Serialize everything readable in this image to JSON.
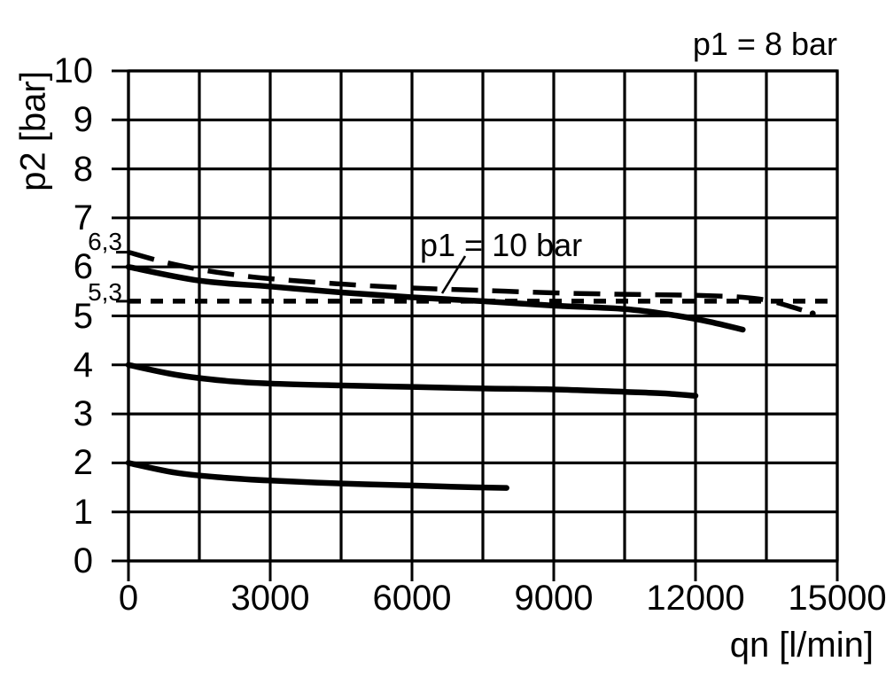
{
  "chart_data": {
    "type": "line",
    "title": "",
    "xlabel": "qn [l/min]",
    "ylabel": "p2 [bar]",
    "xlim": [
      0,
      15000
    ],
    "ylim": [
      0,
      10
    ],
    "x_major_ticks": [
      0,
      3000,
      6000,
      9000,
      12000,
      15000
    ],
    "x_grid_step": 1500,
    "y_ticks": [
      0,
      1,
      2,
      3,
      4,
      5,
      6,
      7,
      8,
      9,
      10
    ],
    "grid": "on",
    "legend": "none",
    "line_color": "#000000",
    "background_color": "#ffffff",
    "annotations": {
      "top_right": "p1 = 8 bar",
      "curve_label": "p1 = 10 bar"
    },
    "special_y_marks": [
      {
        "label": "6,3",
        "value": 6.3
      },
      {
        "label": "5,3",
        "value": 5.3
      }
    ],
    "series": [
      {
        "name": "p1 = 10 bar inlet curve",
        "style": "long-dash",
        "points": [
          [
            0,
            6.3
          ],
          [
            750,
            6.1
          ],
          [
            1500,
            5.95
          ],
          [
            2250,
            5.84
          ],
          [
            3000,
            5.76
          ],
          [
            4500,
            5.65
          ],
          [
            6000,
            5.57
          ],
          [
            7500,
            5.52
          ],
          [
            9000,
            5.47
          ],
          [
            10500,
            5.44
          ],
          [
            12000,
            5.42
          ],
          [
            13000,
            5.38
          ],
          [
            13600,
            5.3
          ],
          [
            14250,
            5.12
          ]
        ],
        "end_dot": [
          14480,
          5.05
        ]
      },
      {
        "name": "5,3 bar reference line",
        "style": "short-dash",
        "points": [
          [
            0,
            5.3
          ],
          [
            14800,
            5.3
          ]
        ]
      },
      {
        "name": "p1 = 8 bar, outlet set 6 bar",
        "style": "solid",
        "points": [
          [
            0,
            6.0
          ],
          [
            1500,
            5.72
          ],
          [
            3000,
            5.6
          ],
          [
            4500,
            5.48
          ],
          [
            6000,
            5.38
          ],
          [
            7500,
            5.3
          ],
          [
            9000,
            5.21
          ],
          [
            10500,
            5.14
          ],
          [
            11500,
            5.02
          ],
          [
            12300,
            4.88
          ],
          [
            13000,
            4.72
          ]
        ]
      },
      {
        "name": "p1 = 8 bar, outlet set 4 bar",
        "style": "solid",
        "points": [
          [
            0,
            4.0
          ],
          [
            1000,
            3.8
          ],
          [
            2000,
            3.68
          ],
          [
            3000,
            3.62
          ],
          [
            4500,
            3.58
          ],
          [
            6000,
            3.55
          ],
          [
            7500,
            3.52
          ],
          [
            9000,
            3.5
          ],
          [
            10500,
            3.45
          ],
          [
            11300,
            3.42
          ],
          [
            12000,
            3.37
          ]
        ]
      },
      {
        "name": "p1 = 8 bar, outlet set 2 bar",
        "style": "solid",
        "points": [
          [
            0,
            2.0
          ],
          [
            1000,
            1.8
          ],
          [
            2000,
            1.7
          ],
          [
            3000,
            1.64
          ],
          [
            4500,
            1.58
          ],
          [
            6000,
            1.54
          ],
          [
            7000,
            1.51
          ],
          [
            8000,
            1.49
          ]
        ]
      }
    ]
  }
}
